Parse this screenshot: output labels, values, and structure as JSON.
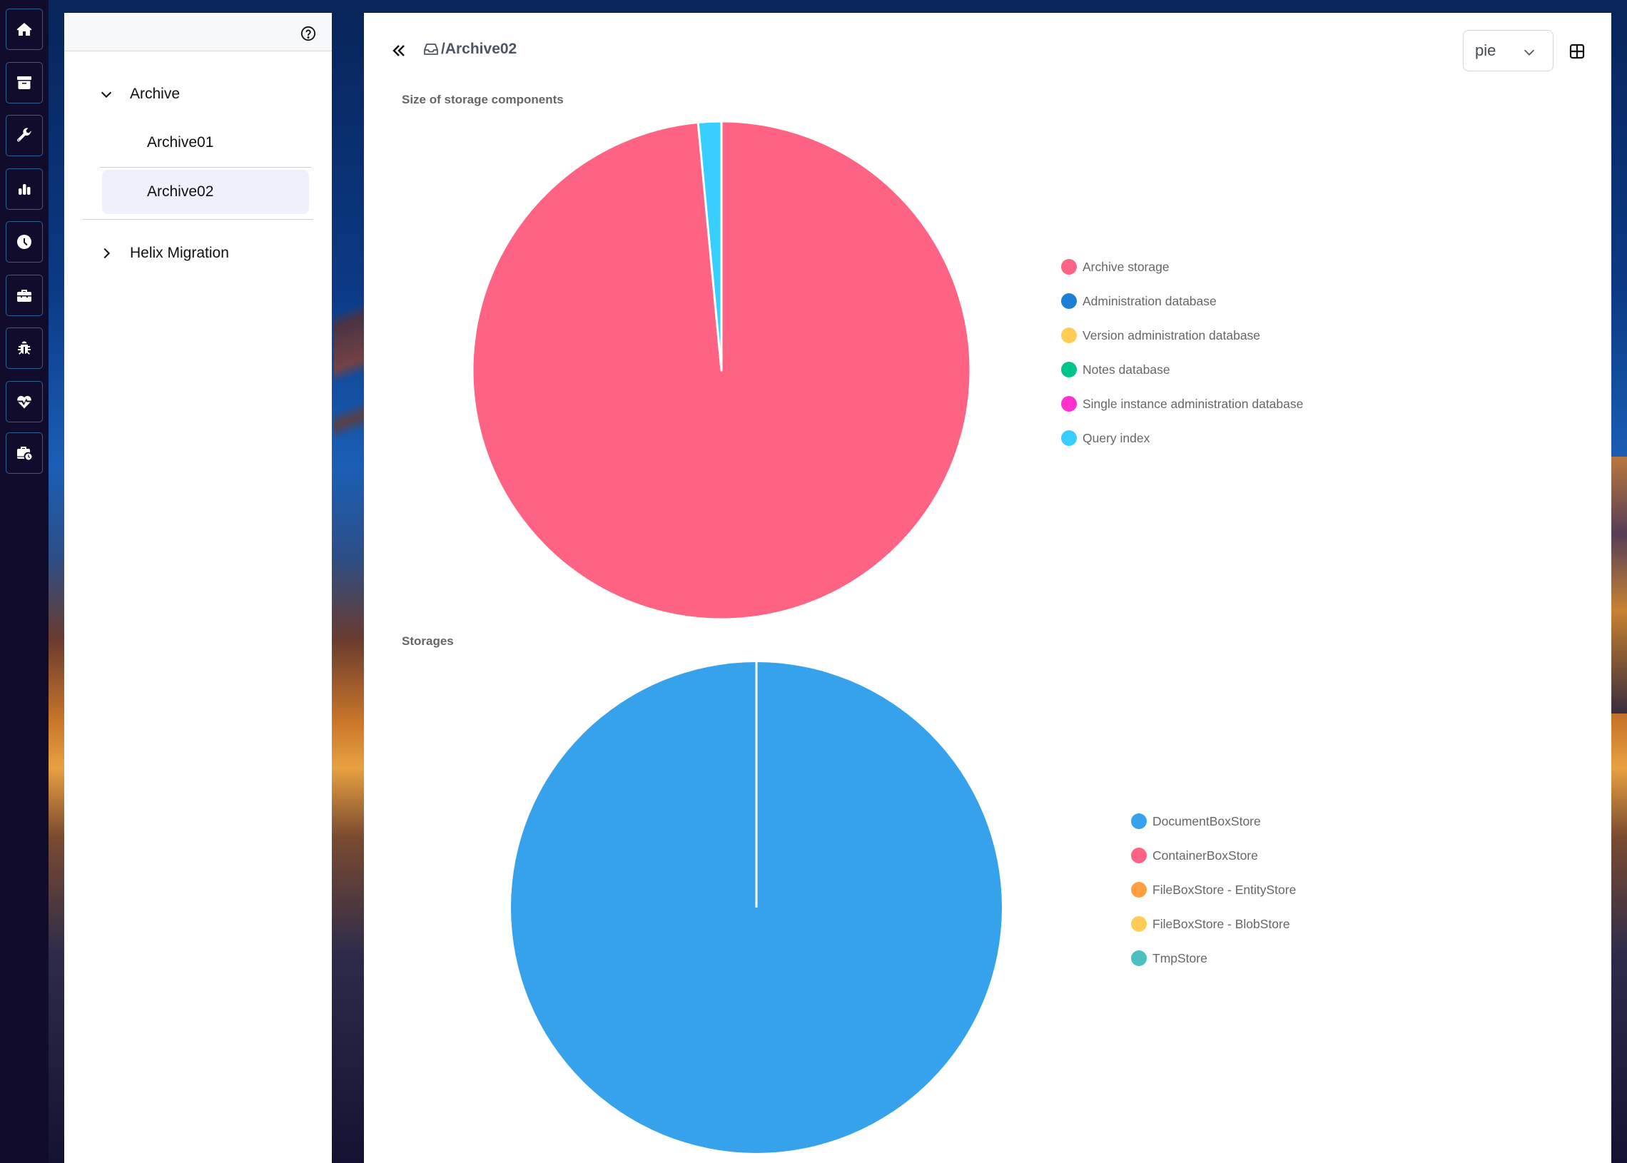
{
  "rail": {
    "items": [
      {
        "name": "home",
        "icon": "home-icon"
      },
      {
        "name": "archive",
        "icon": "archive-box-icon"
      },
      {
        "name": "settings",
        "icon": "wrench-icon"
      },
      {
        "name": "statistics",
        "icon": "bar-chart-icon"
      },
      {
        "name": "history",
        "icon": "clock-icon"
      },
      {
        "name": "tools",
        "icon": "toolbox-icon"
      },
      {
        "name": "debug",
        "icon": "bug-icon"
      },
      {
        "name": "health",
        "icon": "heartbeat-icon"
      },
      {
        "name": "scheduled-jobs",
        "icon": "briefcase-clock-icon"
      }
    ]
  },
  "tree": {
    "help_icon": "help-circle-icon",
    "nodes": [
      {
        "label": "Archive",
        "expanded": true,
        "children": [
          {
            "label": "Archive01",
            "selected": false
          },
          {
            "label": "Archive02",
            "selected": true
          }
        ]
      },
      {
        "label": "Helix Migration",
        "expanded": false
      }
    ]
  },
  "header": {
    "breadcrumb": "/Archive02",
    "breadcrumb_icon": "inbox-icon",
    "chart_type_select": "pie",
    "grid_view_icon": "grid-icon"
  },
  "chart_data": [
    {
      "type": "pie",
      "title": "Size of storage components",
      "categories": [
        "Archive storage",
        "Administration database",
        "Version administration database",
        "Notes database",
        "Single instance administration database",
        "Query index"
      ],
      "values": [
        98.5,
        0,
        0,
        0,
        0,
        1.5
      ],
      "colors": [
        "#ff6384",
        "#1b7fd4",
        "#ffcd56",
        "#00c48c",
        "#ff2fd0",
        "#36cfff"
      ],
      "legend_position": "right",
      "unit": "percent (estimated)"
    },
    {
      "type": "pie",
      "title": "Storages",
      "categories": [
        "DocumentBoxStore",
        "ContainerBoxStore",
        "FileBoxStore - EntityStore",
        "FileBoxStore - BlobStore",
        "TmpStore"
      ],
      "values": [
        100,
        0,
        0,
        0,
        0
      ],
      "colors": [
        "#36a2eb",
        "#ff6384",
        "#ff9f40",
        "#ffcd56",
        "#4bc0c0"
      ],
      "legend_position": "right",
      "unit": "percent (estimated)"
    }
  ]
}
